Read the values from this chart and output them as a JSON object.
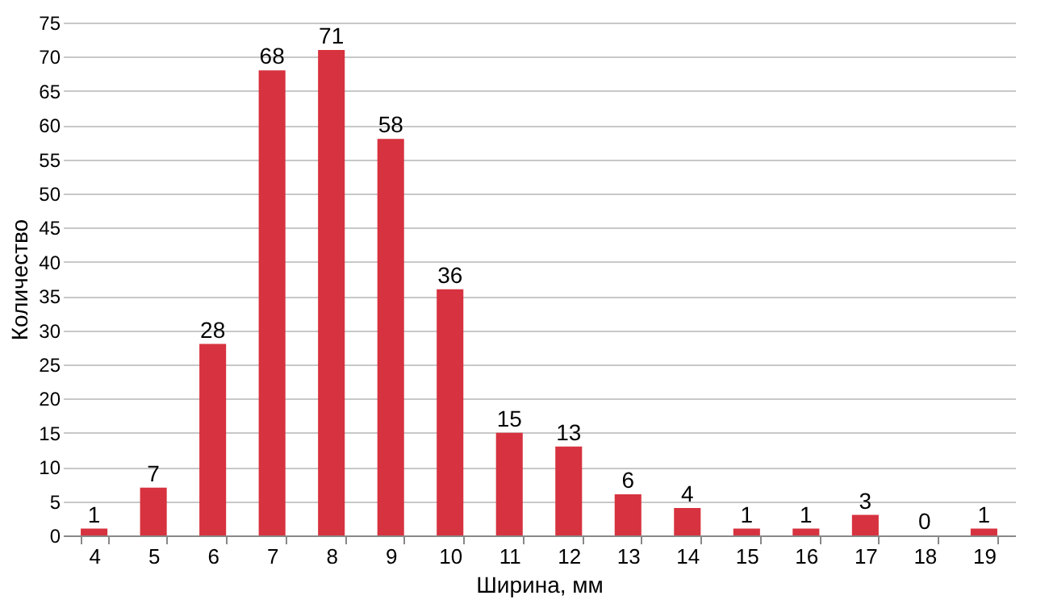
{
  "chart_data": {
    "type": "bar",
    "xlabel": "Ширина, мм",
    "ylabel": "Количество",
    "categories": [
      "4",
      "5",
      "6",
      "7",
      "8",
      "9",
      "10",
      "11",
      "12",
      "13",
      "14",
      "15",
      "16",
      "17",
      "18",
      "19"
    ],
    "values": [
      1,
      7,
      28,
      68,
      71,
      58,
      36,
      15,
      13,
      6,
      4,
      1,
      1,
      3,
      0,
      1
    ],
    "color": "#d7323f",
    "ylim": [
      0,
      75
    ],
    "yticks": [
      0,
      5,
      10,
      15,
      20,
      25,
      30,
      35,
      40,
      45,
      50,
      55,
      60,
      65,
      70,
      75
    ],
    "grid": "y",
    "data_labels": true
  }
}
